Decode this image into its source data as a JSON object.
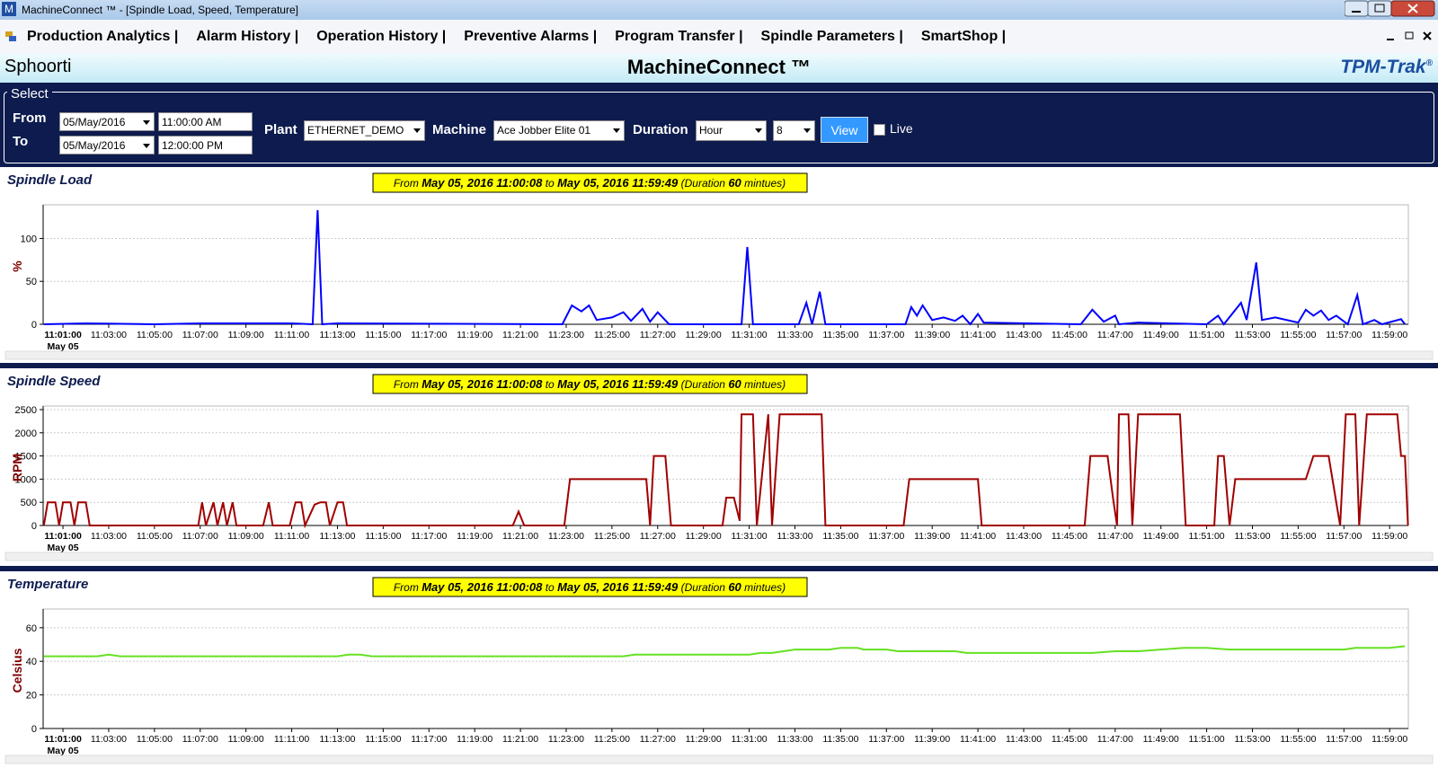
{
  "window": {
    "icon": "M",
    "title": "MachineConnect ™ - [Spindle Load, Speed, Temperature]"
  },
  "menu": [
    "Production Analytics |",
    "Alarm History |",
    "Operation History |",
    "Preventive Alarms |",
    "Program Transfer |",
    "Spindle Parameters |",
    "SmartShop |"
  ],
  "header": {
    "company": "Sphoorti",
    "title": "MachineConnect ™",
    "brand": "TPM-Trak",
    "brand_mark": "®"
  },
  "form": {
    "legend": "Select",
    "from_label": "From",
    "from_date": "05/May/2016",
    "from_time": "11:00:00 AM",
    "to_label": "To",
    "to_date": "05/May/2016",
    "to_time": "12:00:00 PM",
    "plant_label": "Plant",
    "plant": "ETHERNET_DEMO",
    "machine_label": "Machine",
    "machine": "Ace Jobber Elite 01",
    "duration_label": "Duration",
    "duration_unit": "Hour",
    "duration_value": "8",
    "view_button": "View",
    "live_label": "Live"
  },
  "chart_data": [
    {
      "type": "line",
      "title": "Spindle Load",
      "ylabel": "%",
      "subtitle_parts": [
        "From ",
        "May 05, 2016 11:00:08",
        " to ",
        "May 05, 2016 11:59:49",
        " (Duration ",
        "60",
        " mintues)"
      ],
      "color": "#0000ff",
      "xlim": [
        "11:00:08",
        "11:59:49"
      ],
      "ylim": [
        0,
        135
      ],
      "yticks": [
        0,
        50,
        100
      ],
      "grid": true,
      "xticks": [
        "11:01:00",
        "11:03:00",
        "11:05:00",
        "11:07:00",
        "11:09:00",
        "11:11:00",
        "11:13:00",
        "11:15:00",
        "11:17:00",
        "11:19:00",
        "11:21:00",
        "11:23:00",
        "11:25:00",
        "11:27:00",
        "11:29:00",
        "11:31:00",
        "11:33:00",
        "11:35:00",
        "11:37:00",
        "11:39:00",
        "11:41:00",
        "11:43:00",
        "11:45:00",
        "11:47:00",
        "11:49:00",
        "11:51:00",
        "11:53:00",
        "11:55:00",
        "11:57:00",
        "11:59:00"
      ],
      "xtick_sublabel": "May 05",
      "x": [
        "11:00:10",
        "11:02:00",
        "11:05:00",
        "11:07:00",
        "11:09:00",
        "11:11:00",
        "11:11:55",
        "11:12:08",
        "11:12:20",
        "11:13:00",
        "11:22:50",
        "11:23:15",
        "11:23:40",
        "11:24:00",
        "11:24:20",
        "11:25:00",
        "11:25:30",
        "11:25:50",
        "11:26:20",
        "11:26:40",
        "11:27:00",
        "11:27:30",
        "11:30:40",
        "11:30:55",
        "11:31:10",
        "11:33:10",
        "11:33:30",
        "11:33:45",
        "11:34:05",
        "11:34:20",
        "11:37:50",
        "11:38:05",
        "11:38:20",
        "11:38:35",
        "11:39:00",
        "11:39:30",
        "11:40:00",
        "11:40:20",
        "11:40:40",
        "11:41:00",
        "11:41:15",
        "11:45:30",
        "11:46:00",
        "11:46:30",
        "11:47:00",
        "11:47:10",
        "11:48:00",
        "11:51:00",
        "11:51:30",
        "11:51:45",
        "11:52:30",
        "11:52:45",
        "11:53:10",
        "11:53:25",
        "11:54:00",
        "11:55:00",
        "11:55:20",
        "11:55:40",
        "11:56:00",
        "11:56:20",
        "11:56:40",
        "11:57:10",
        "11:57:35",
        "11:57:50",
        "11:58:20",
        "11:58:40",
        "11:59:30",
        "11:59:40"
      ],
      "values": [
        0,
        1,
        0,
        1,
        1,
        1,
        0,
        133,
        0,
        1,
        0,
        22,
        15,
        22,
        5,
        8,
        14,
        4,
        18,
        3,
        14,
        0,
        0,
        90,
        0,
        0,
        25,
        0,
        38,
        0,
        0,
        20,
        10,
        22,
        5,
        8,
        4,
        10,
        0,
        12,
        2,
        0,
        17,
        3,
        10,
        0,
        2,
        0,
        10,
        0,
        25,
        5,
        72,
        5,
        8,
        2,
        17,
        10,
        16,
        5,
        10,
        0,
        34,
        0,
        5,
        0,
        6,
        0
      ]
    },
    {
      "type": "line",
      "title": "Spindle Speed",
      "ylabel": "RPM",
      "subtitle_parts": [
        "From ",
        "May 05, 2016 11:00:08",
        " to ",
        "May 05, 2016 11:59:49",
        " (Duration ",
        "60",
        " mintues)"
      ],
      "color": "#a00000",
      "xlim": [
        "11:00:08",
        "11:59:49"
      ],
      "ylim": [
        0,
        2500
      ],
      "yticks": [
        0,
        500,
        1000,
        1500,
        2000,
        2500
      ],
      "grid": true,
      "xticks": [
        "11:01:00",
        "11:03:00",
        "11:05:00",
        "11:07:00",
        "11:09:00",
        "11:11:00",
        "11:13:00",
        "11:15:00",
        "11:17:00",
        "11:19:00",
        "11:21:00",
        "11:23:00",
        "11:25:00",
        "11:27:00",
        "11:29:00",
        "11:31:00",
        "11:33:00",
        "11:35:00",
        "11:37:00",
        "11:39:00",
        "11:41:00",
        "11:43:00",
        "11:45:00",
        "11:47:00",
        "11:49:00",
        "11:51:00",
        "11:53:00",
        "11:55:00",
        "11:57:00",
        "11:59:00"
      ],
      "xtick_sublabel": "May 05",
      "x": [
        "11:00:10",
        "11:00:20",
        "11:00:40",
        "11:00:50",
        "11:01:00",
        "11:01:20",
        "11:01:30",
        "11:01:40",
        "11:02:00",
        "11:02:10",
        "11:06:55",
        "11:07:05",
        "11:07:15",
        "11:07:35",
        "11:07:45",
        "11:08:00",
        "11:08:10",
        "11:08:25",
        "11:08:35",
        "11:09:45",
        "11:10:00",
        "11:10:10",
        "11:10:55",
        "11:11:10",
        "11:11:25",
        "11:11:35",
        "11:12:00",
        "11:12:15",
        "11:12:30",
        "11:12:40",
        "11:13:00",
        "11:13:15",
        "11:13:25",
        "11:20:40",
        "11:20:55",
        "11:21:10",
        "11:22:55",
        "11:23:10",
        "11:26:30",
        "11:26:40",
        "11:26:50",
        "11:27:20",
        "11:27:35",
        "11:29:50",
        "11:30:00",
        "11:30:20",
        "11:30:35",
        "11:30:40",
        "11:31:10",
        "11:31:20",
        "11:31:50",
        "11:32:00",
        "11:32:20",
        "11:34:10",
        "11:34:20",
        "11:37:45",
        "11:38:00",
        "11:41:00",
        "11:41:10",
        "11:45:40",
        "11:45:55",
        "11:46:40",
        "11:46:55",
        "11:47:05",
        "11:47:10",
        "11:47:35",
        "11:47:45",
        "11:48:00",
        "11:49:50",
        "11:50:05",
        "11:51:20",
        "11:51:30",
        "11:51:45",
        "11:52:00",
        "11:52:15",
        "11:55:20",
        "11:55:40",
        "11:56:20",
        "11:56:40",
        "11:56:50",
        "11:57:05",
        "11:57:30",
        "11:57:40",
        "11:58:00",
        "11:59:20",
        "11:59:30",
        "11:59:40",
        "11:59:48"
      ],
      "values": [
        0,
        500,
        500,
        0,
        500,
        500,
        0,
        500,
        500,
        0,
        0,
        500,
        0,
        500,
        0,
        500,
        0,
        500,
        0,
        0,
        500,
        0,
        0,
        500,
        500,
        0,
        450,
        500,
        500,
        0,
        500,
        500,
        0,
        0,
        300,
        0,
        0,
        1000,
        1000,
        0,
        1500,
        1500,
        0,
        0,
        600,
        600,
        100,
        2400,
        2400,
        0,
        2400,
        0,
        2400,
        2400,
        0,
        0,
        1000,
        1000,
        0,
        0,
        1500,
        1500,
        550,
        0,
        2400,
        2400,
        0,
        2400,
        2400,
        0,
        0,
        1500,
        1500,
        0,
        1000,
        1000,
        1500,
        1500,
        500,
        0,
        2400,
        2400,
        0,
        2400,
        2400,
        1500,
        1500,
        0
      ]
    },
    {
      "type": "line",
      "title": "Temperature",
      "ylabel": "Celsius",
      "subtitle_parts": [
        "From ",
        "May 05, 2016 11:00:08",
        " to ",
        "May 05, 2016 11:59:49",
        " (Duration ",
        "60",
        " mintues)"
      ],
      "color": "#66e022",
      "xlim": [
        "11:00:08",
        "11:59:49"
      ],
      "ylim": [
        0,
        69
      ],
      "yticks": [
        0,
        20,
        40,
        60
      ],
      "grid": true,
      "xticks": [
        "11:01:00",
        "11:03:00",
        "11:05:00",
        "11:07:00",
        "11:09:00",
        "11:11:00",
        "11:13:00",
        "11:15:00",
        "11:17:00",
        "11:19:00",
        "11:21:00",
        "11:23:00",
        "11:25:00",
        "11:27:00",
        "11:29:00",
        "11:31:00",
        "11:33:00",
        "11:35:00",
        "11:37:00",
        "11:39:00",
        "11:41:00",
        "11:43:00",
        "11:45:00",
        "11:47:00",
        "11:49:00",
        "11:51:00",
        "11:53:00",
        "11:55:00",
        "11:57:00",
        "11:59:00"
      ],
      "xtick_sublabel": "May 05",
      "x": [
        "11:00:10",
        "11:02:30",
        "11:03:00",
        "11:03:30",
        "11:13:00",
        "11:13:30",
        "11:14:00",
        "11:14:30",
        "11:25:30",
        "11:26:00",
        "11:31:00",
        "11:31:30",
        "11:32:00",
        "11:32:30",
        "11:33:00",
        "11:34:30",
        "11:35:00",
        "11:35:45",
        "11:36:00",
        "11:37:00",
        "11:37:30",
        "11:40:00",
        "11:40:30",
        "11:46:00",
        "11:47:00",
        "11:48:00",
        "11:49:00",
        "11:50:00",
        "11:51:00",
        "11:52:00",
        "11:57:00",
        "11:57:30",
        "11:59:00",
        "11:59:40"
      ],
      "values": [
        43,
        43,
        44,
        43,
        43,
        44,
        44,
        43,
        43,
        44,
        44,
        45,
        45,
        46,
        47,
        47,
        48,
        48,
        47,
        47,
        46,
        46,
        45,
        45,
        46,
        46,
        47,
        48,
        48,
        47,
        47,
        48,
        48,
        49
      ]
    }
  ]
}
